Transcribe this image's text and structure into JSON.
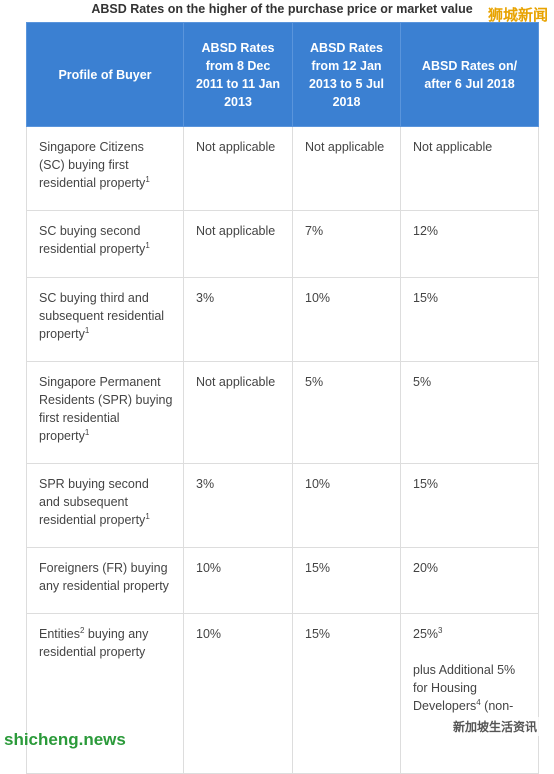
{
  "title": "ABSD Rates on the higher of the purchase price or market value",
  "header": [
    "Profile of Buyer",
    "ABSD Rates from 8 Dec 2011 to 11 Jan 2013",
    "ABSD Rates from 12 Jan 2013 to 5 Jul 2018",
    "ABSD Rates on/ after 6 Jul 2018"
  ],
  "rows": [
    [
      [
        [
          "Singapore Citizens (SC) buying first residential property",
          {
            "sup": "1"
          }
        ]
      ],
      [
        [
          "Not applicable"
        ]
      ],
      [
        [
          "Not applicable"
        ]
      ],
      [
        [
          "Not applicable"
        ]
      ]
    ],
    [
      [
        [
          "SC buying second residential property",
          {
            "sup": "1"
          }
        ]
      ],
      [
        [
          "Not applicable"
        ]
      ],
      [
        [
          "7%"
        ]
      ],
      [
        [
          "12%"
        ]
      ]
    ],
    [
      [
        [
          "SC buying third and subsequent residential property",
          {
            "sup": "1"
          }
        ]
      ],
      [
        [
          "3%"
        ]
      ],
      [
        [
          "10%"
        ]
      ],
      [
        [
          "15%"
        ]
      ]
    ],
    [
      [
        [
          "Singapore Permanent Residents (SPR) buying first residential property",
          {
            "sup": "1"
          }
        ]
      ],
      [
        [
          "Not applicable"
        ]
      ],
      [
        [
          "5%"
        ]
      ],
      [
        [
          "5%"
        ]
      ]
    ],
    [
      [
        [
          "SPR buying second and subsequent residential property",
          {
            "sup": "1"
          }
        ]
      ],
      [
        [
          "3%"
        ]
      ],
      [
        [
          "10%"
        ]
      ],
      [
        [
          "15%"
        ]
      ]
    ],
    [
      [
        [
          "Foreigners (FR) buying any residential property"
        ]
      ],
      [
        [
          "10%"
        ]
      ],
      [
        [
          "15%"
        ]
      ],
      [
        [
          "20%"
        ]
      ]
    ],
    [
      [
        [
          "Entities",
          {
            "sup": "2"
          },
          " buying any residential property"
        ]
      ],
      [
        [
          "10%"
        ]
      ],
      [
        [
          "15%"
        ]
      ],
      [
        [
          "25%",
          {
            "sup": "3"
          }
        ],
        [
          "plus Additional 5% for Housing Developers",
          {
            "sup": "4"
          },
          " (non-"
        ]
      ]
    ]
  ],
  "watermarks": [
    "狮城新闻",
    "shicheng.news",
    "新加坡生活资讯"
  ]
}
